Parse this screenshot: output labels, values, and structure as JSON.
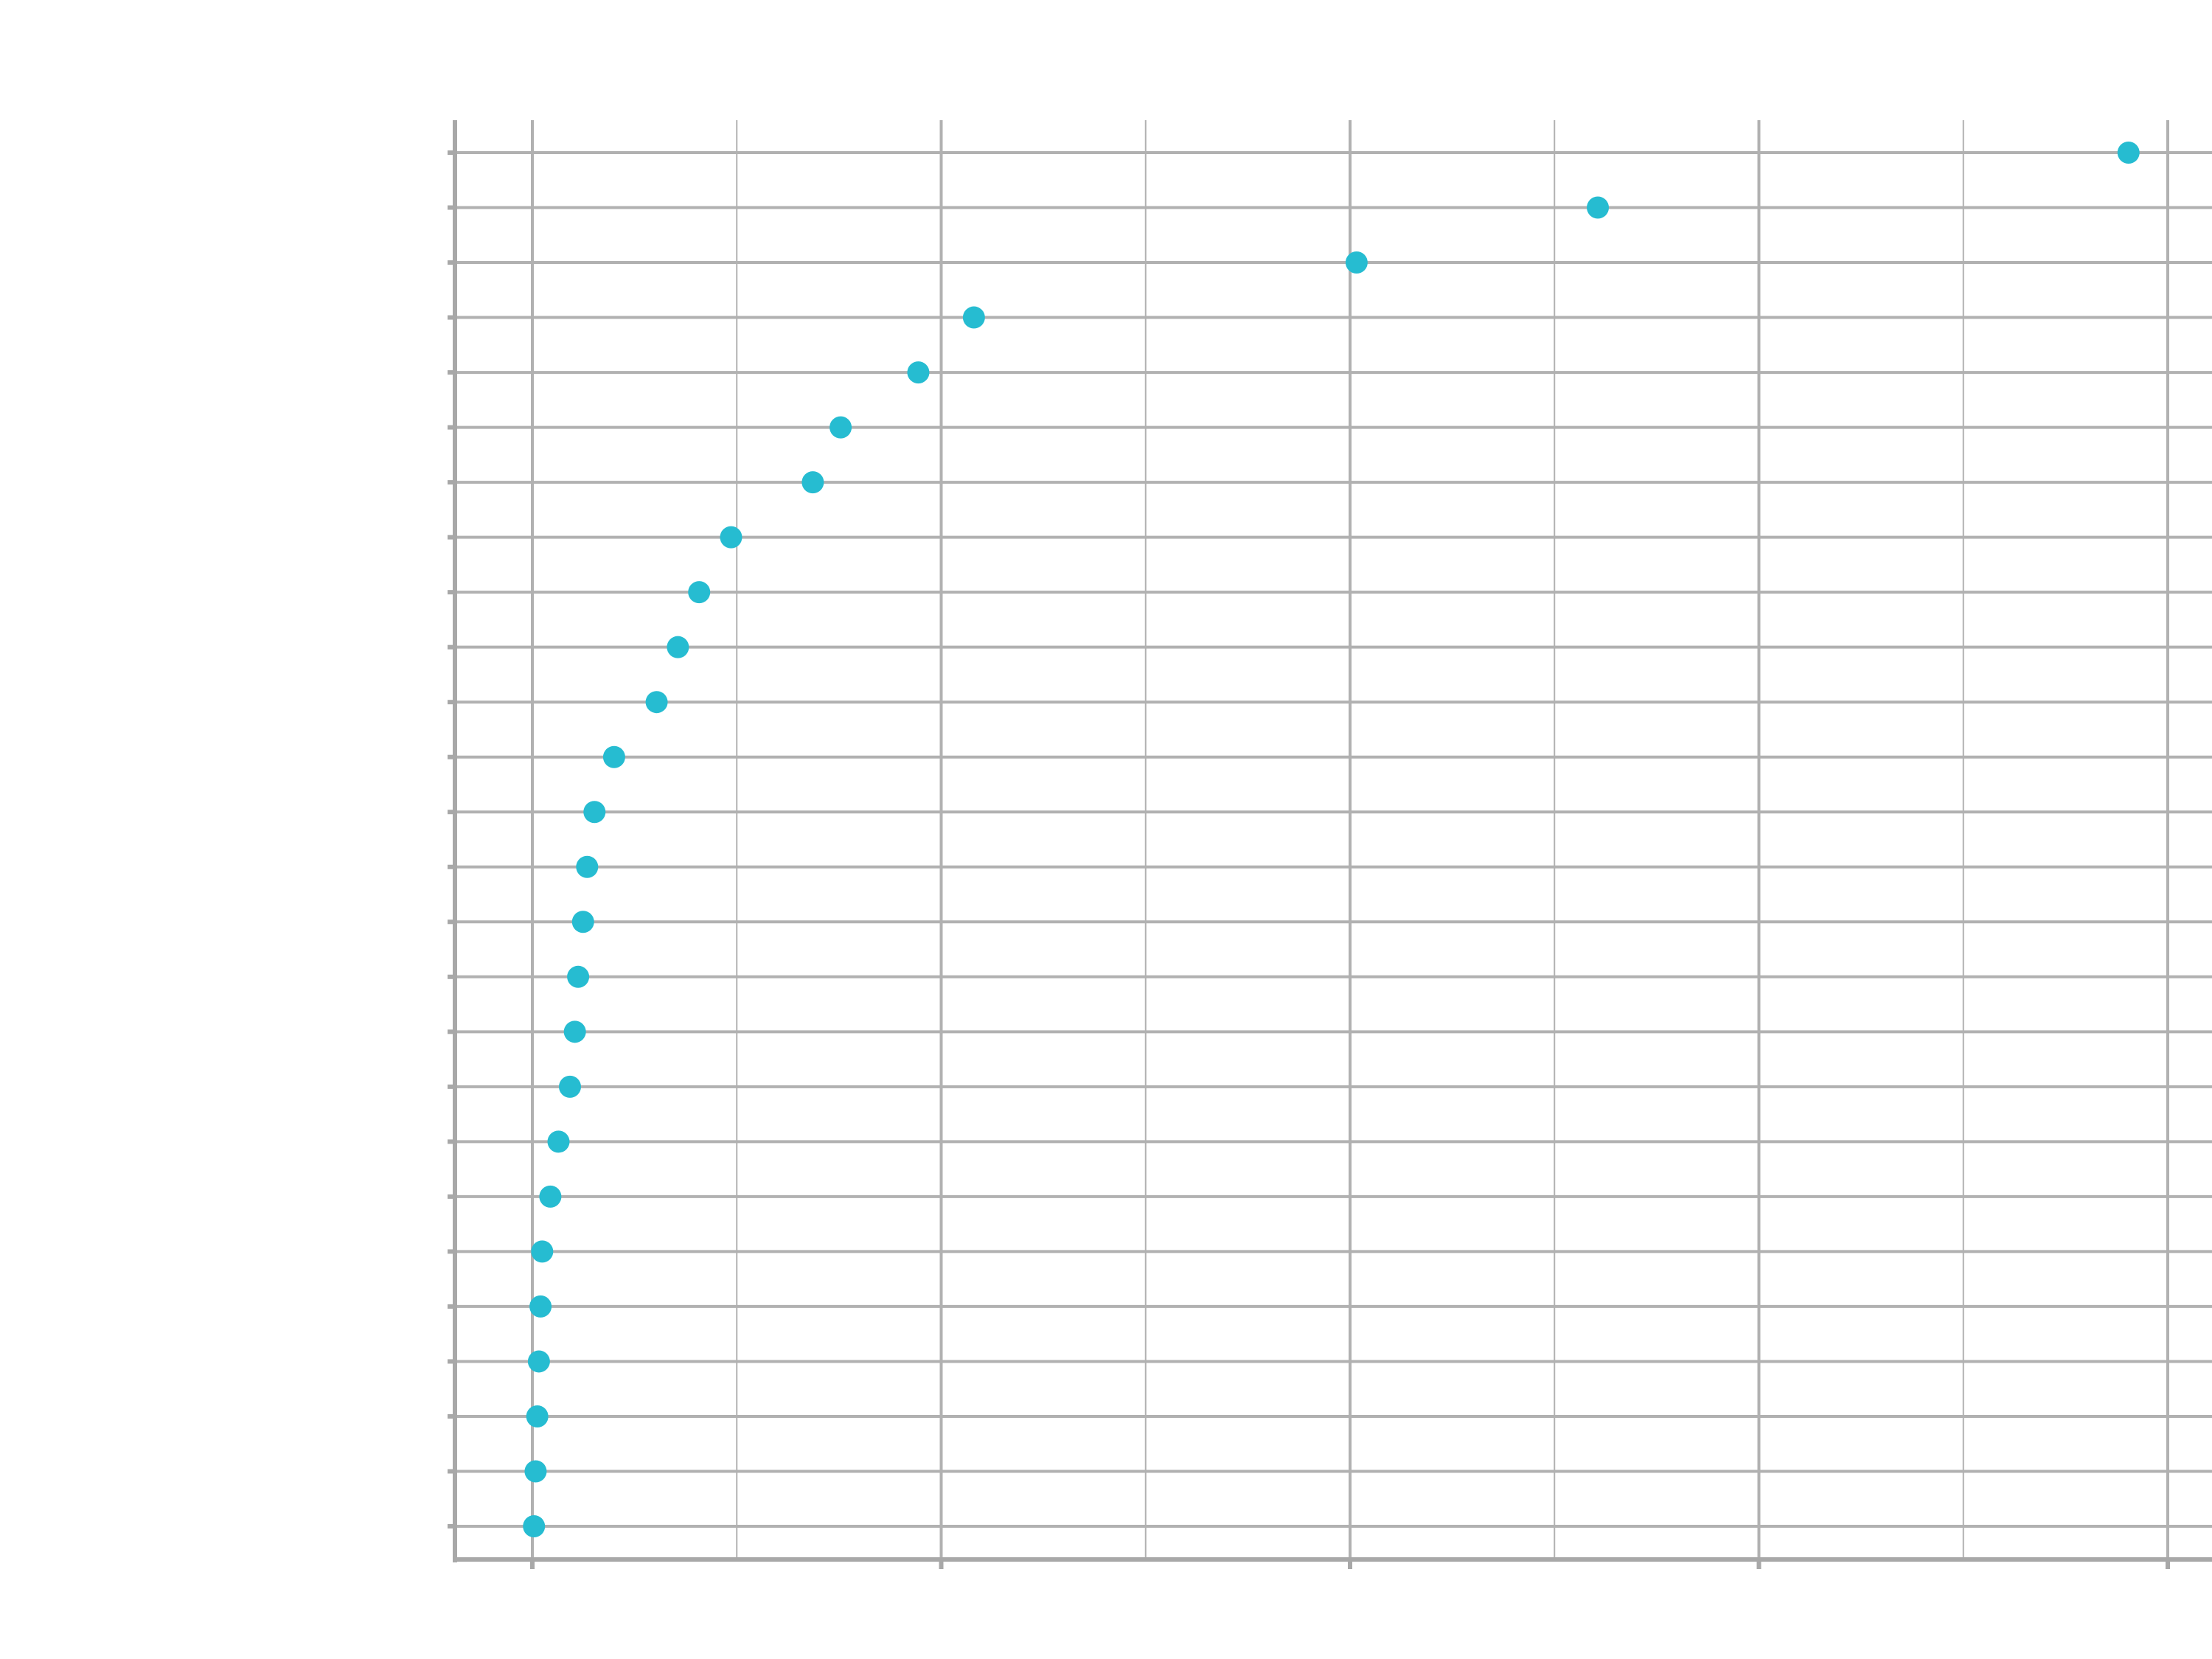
{
  "chart_data": {
    "type": "scatter",
    "title": "",
    "xlabel": "",
    "ylabel": "",
    "xlim": [
      -0.1,
      2.06
    ],
    "x_major_ticks": [
      0,
      0.5,
      1,
      1.5,
      2
    ],
    "x_minor_ticks": [
      0.25,
      0.75,
      1.25,
      1.75
    ],
    "grid": true,
    "series": [
      {
        "values": [
          0.002,
          0.004,
          0.006,
          0.008,
          0.01,
          0.012,
          0.022,
          0.032,
          0.046,
          0.052,
          0.056,
          0.062,
          0.067,
          0.076,
          0.1,
          0.152,
          0.178,
          0.204,
          0.243,
          0.343,
          0.377,
          0.472,
          0.54,
          1.008,
          1.303,
          1.952
        ]
      }
    ]
  },
  "colors": {
    "point": "#26bcd1",
    "grid": "#b1b1b1",
    "axis": "#a8a8a8"
  }
}
